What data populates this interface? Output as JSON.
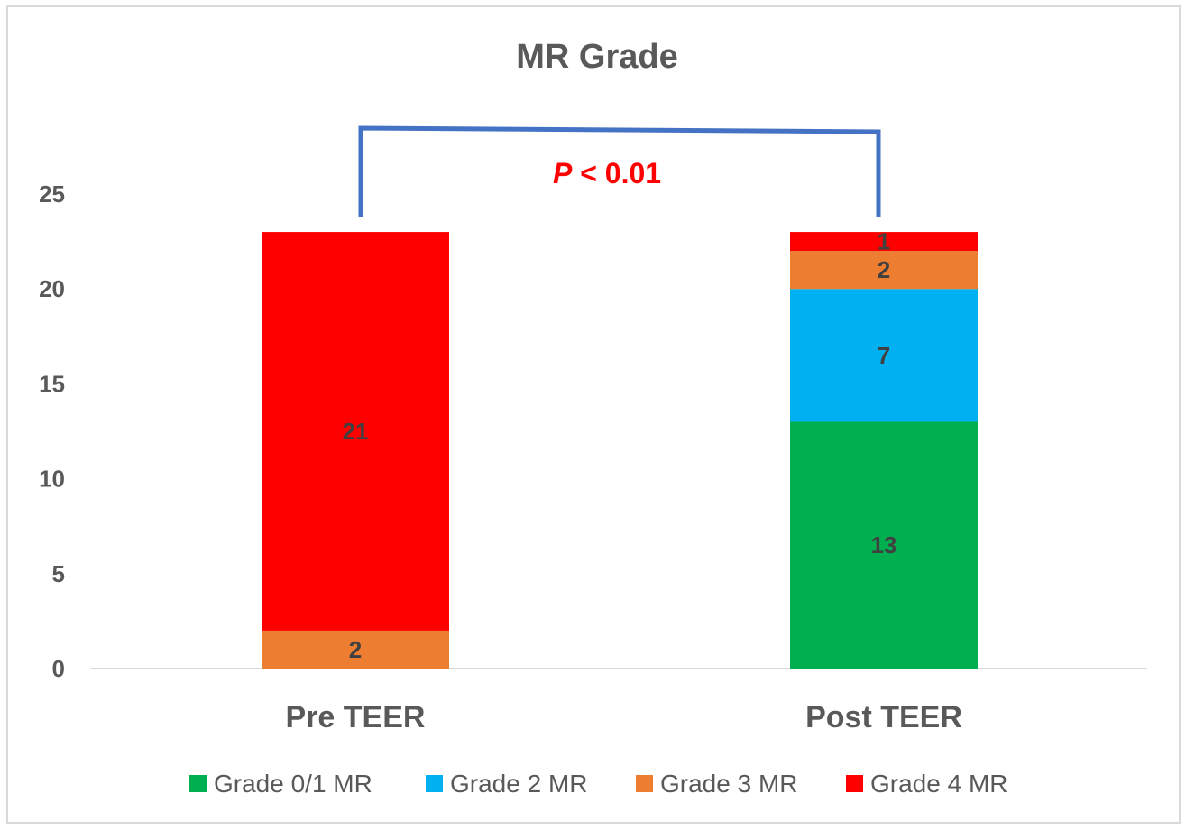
{
  "chart_data": {
    "type": "bar",
    "stacked": true,
    "title": "MR Grade",
    "xlabel": "",
    "ylabel": "",
    "categories": [
      "Pre TEER",
      "Post TEER"
    ],
    "ylim": [
      0,
      25
    ],
    "yticks": [
      0,
      5,
      10,
      15,
      20,
      25
    ],
    "grid": false,
    "legend_position": "bottom",
    "series": [
      {
        "name": "Grade 0/1 MR",
        "color": "#00b050",
        "values": [
          0,
          13
        ]
      },
      {
        "name": "Grade 2 MR",
        "color": "#00b0f0",
        "values": [
          0,
          7
        ]
      },
      {
        "name": "Grade 3 MR",
        "color": "#ed7d31",
        "values": [
          2,
          2
        ]
      },
      {
        "name": "Grade 4 MR",
        "color": "#ff0000",
        "values": [
          21,
          1
        ]
      }
    ],
    "annotation": {
      "p_symbol": "P",
      "p_rest": " < 0.01",
      "color": "#ff0000",
      "bracket_color": "#4472c4"
    }
  }
}
